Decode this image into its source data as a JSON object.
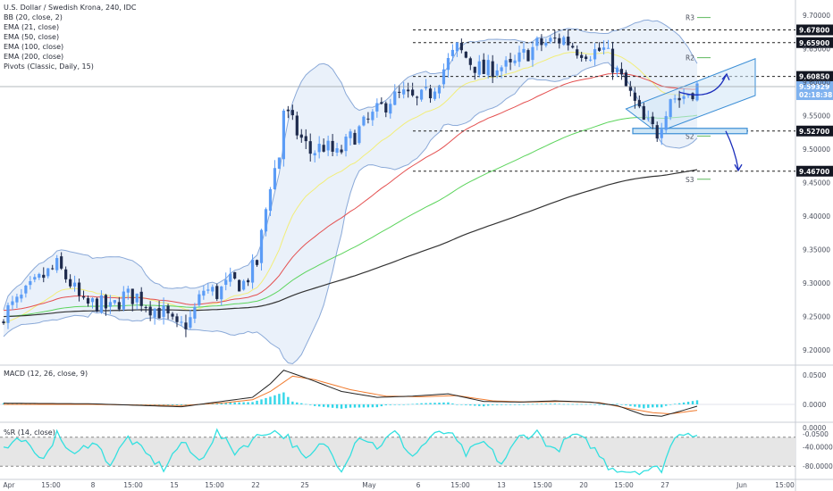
{
  "legend": {
    "title": "U.S. Dollar / Swedish Krona, 240, IDC",
    "lines": [
      "BB (20, close, 2)",
      "EMA (21, close)",
      "EMA (50, close)",
      "EMA (100, close)",
      "EMA (200, close)",
      "Pivots (Classic, Daily, 15)"
    ]
  },
  "macd_label": "MACD (12, 26, close, 9)",
  "wr_label": "%R (14, close)",
  "colors": {
    "bull": "#5b9cf6",
    "bear": "#1e2b4d",
    "ema21": "#f2ee7a",
    "ema50": "#e45050",
    "ema100": "#5cd45c",
    "ema200": "#333333",
    "bb": "#8aa9d8",
    "bbfill": "#d9e6f5",
    "wr": "#33e0e0",
    "macd_line": "#222222",
    "signal_line": "#f07a2d",
    "hist": "#33d6e8",
    "arrow": "#1a2dbb",
    "channel": "#3b8ed6"
  },
  "chart_data": {
    "type": "candlestick",
    "price_ylim": [
      9.185,
      9.72
    ],
    "price_ticks": [
      "9.70000",
      "9.65000",
      "9.60000",
      "9.55000",
      "9.50000",
      "9.45000",
      "9.40000",
      "9.35000",
      "9.30000",
      "9.25000",
      "9.20000"
    ],
    "x_ticks": [
      "Apr",
      "15:00",
      "8",
      "15:00",
      "15",
      "15:00",
      "22",
      "25",
      "May",
      "6",
      "15:00",
      "13",
      "15:00",
      "20",
      "15:00",
      "27",
      "Jun",
      "15:00"
    ],
    "levels": [
      {
        "label": "9.67800",
        "value": 9.678
      },
      {
        "label": "9.65900",
        "value": 9.659
      },
      {
        "label": "9.60850",
        "value": 9.6085
      },
      {
        "label": "9.52700",
        "value": 9.527
      },
      {
        "label": "9.46700",
        "value": 9.467
      }
    ],
    "last_price": {
      "label": "9.59329",
      "value": 9.59329,
      "countdown": "02:18:38"
    },
    "pivots": [
      {
        "label": "R3",
        "value": 9.6965
      },
      {
        "label": "R2",
        "value": 9.6365
      },
      {
        "label": "S2",
        "value": 9.5195
      },
      {
        "label": "S3",
        "value": 9.455
      }
    ],
    "macd_ticks": [
      "0.0500",
      "0.0000",
      "-0.0500"
    ],
    "wr_ticks": [
      "0.0000",
      "-40.0000",
      "-80.0000"
    ],
    "anchors": {
      "close": [
        [
          0,
          9.255
        ],
        [
          3,
          9.27
        ],
        [
          6,
          9.29
        ],
        [
          9,
          9.31
        ],
        [
          12,
          9.325
        ],
        [
          15,
          9.3
        ],
        [
          18,
          9.265
        ],
        [
          21,
          9.27
        ],
        [
          24,
          9.26
        ],
        [
          27,
          9.28
        ],
        [
          30,
          9.28
        ],
        [
          33,
          9.265
        ],
        [
          36,
          9.255
        ],
        [
          39,
          9.23
        ],
        [
          42,
          9.245
        ],
        [
          45,
          9.29
        ],
        [
          48,
          9.285
        ],
        [
          51,
          9.3
        ],
        [
          54,
          9.3
        ],
        [
          57,
          9.33
        ],
        [
          60,
          9.45
        ],
        [
          62,
          9.49
        ],
        [
          63,
          9.56
        ],
        [
          66,
          9.525
        ],
        [
          69,
          9.495
        ],
        [
          72,
          9.505
        ],
        [
          75,
          9.49
        ],
        [
          78,
          9.515
        ],
        [
          81,
          9.535
        ],
        [
          84,
          9.555
        ],
        [
          87,
          9.575
        ],
        [
          90,
          9.58
        ],
        [
          93,
          9.57
        ],
        [
          96,
          9.585
        ],
        [
          99,
          9.62
        ],
        [
          102,
          9.65
        ],
        [
          105,
          9.63
        ],
        [
          108,
          9.615
        ],
        [
          111,
          9.625
        ],
        [
          114,
          9.62
        ],
        [
          117,
          9.64
        ],
        [
          120,
          9.655
        ],
        [
          123,
          9.66
        ],
        [
          126,
          9.665
        ],
        [
          129,
          9.65
        ],
        [
          132,
          9.645
        ],
        [
          135,
          9.648
        ],
        [
          138,
          9.615
        ],
        [
          141,
          9.58
        ],
        [
          144,
          9.54
        ],
        [
          147,
          9.525
        ],
        [
          150,
          9.58
        ],
        [
          152,
          9.575
        ],
        [
          153,
          9.58
        ],
        [
          156,
          9.593
        ]
      ],
      "wr": [
        [
          0,
          -45
        ],
        [
          4,
          -20
        ],
        [
          8,
          -70
        ],
        [
          12,
          -15
        ],
        [
          16,
          -60
        ],
        [
          20,
          -25
        ],
        [
          24,
          -75
        ],
        [
          28,
          -20
        ],
        [
          32,
          -55
        ],
        [
          36,
          -85
        ],
        [
          40,
          -30
        ],
        [
          44,
          -70
        ],
        [
          48,
          -10
        ],
        [
          52,
          -50
        ],
        [
          56,
          -25
        ],
        [
          60,
          -5
        ],
        [
          64,
          -20
        ],
        [
          68,
          -70
        ],
        [
          72,
          -30
        ],
        [
          76,
          -85
        ],
        [
          80,
          -15
        ],
        [
          84,
          -40
        ],
        [
          88,
          -10
        ],
        [
          92,
          -60
        ],
        [
          96,
          -20
        ],
        [
          100,
          -8
        ],
        [
          104,
          -55
        ],
        [
          108,
          -30
        ],
        [
          112,
          -75
        ],
        [
          116,
          -20
        ],
        [
          120,
          -10
        ],
        [
          124,
          -50
        ],
        [
          128,
          -15
        ],
        [
          132,
          -35
        ],
        [
          136,
          -80
        ],
        [
          140,
          -90
        ],
        [
          144,
          -88
        ],
        [
          148,
          -85
        ],
        [
          150,
          -40
        ],
        [
          152,
          -8
        ],
        [
          156,
          -12
        ]
      ],
      "macd": [
        [
          0,
          0.002
        ],
        [
          20,
          0.001
        ],
        [
          40,
          -0.004
        ],
        [
          50,
          0.006
        ],
        [
          56,
          0.012
        ],
        [
          60,
          0.035
        ],
        [
          63,
          0.058
        ],
        [
          68,
          0.045
        ],
        [
          76,
          0.022
        ],
        [
          84,
          0.012
        ],
        [
          92,
          0.014
        ],
        [
          100,
          0.018
        ],
        [
          108,
          0.005
        ],
        [
          116,
          0.004
        ],
        [
          124,
          0.006
        ],
        [
          132,
          0.004
        ],
        [
          138,
          -0.002
        ],
        [
          144,
          -0.018
        ],
        [
          148,
          -0.02
        ],
        [
          152,
          -0.012
        ],
        [
          156,
          -0.003
        ]
      ],
      "signal": [
        [
          0,
          0.0
        ],
        [
          20,
          0.0
        ],
        [
          40,
          -0.002
        ],
        [
          50,
          0.003
        ],
        [
          56,
          0.008
        ],
        [
          60,
          0.022
        ],
        [
          65,
          0.048
        ],
        [
          70,
          0.042
        ],
        [
          78,
          0.025
        ],
        [
          86,
          0.014
        ],
        [
          94,
          0.013
        ],
        [
          102,
          0.015
        ],
        [
          110,
          0.006
        ],
        [
          118,
          0.004
        ],
        [
          126,
          0.005
        ],
        [
          134,
          0.003
        ],
        [
          140,
          -0.006
        ],
        [
          146,
          -0.014
        ],
        [
          150,
          -0.016
        ],
        [
          156,
          -0.01
        ]
      ]
    }
  }
}
